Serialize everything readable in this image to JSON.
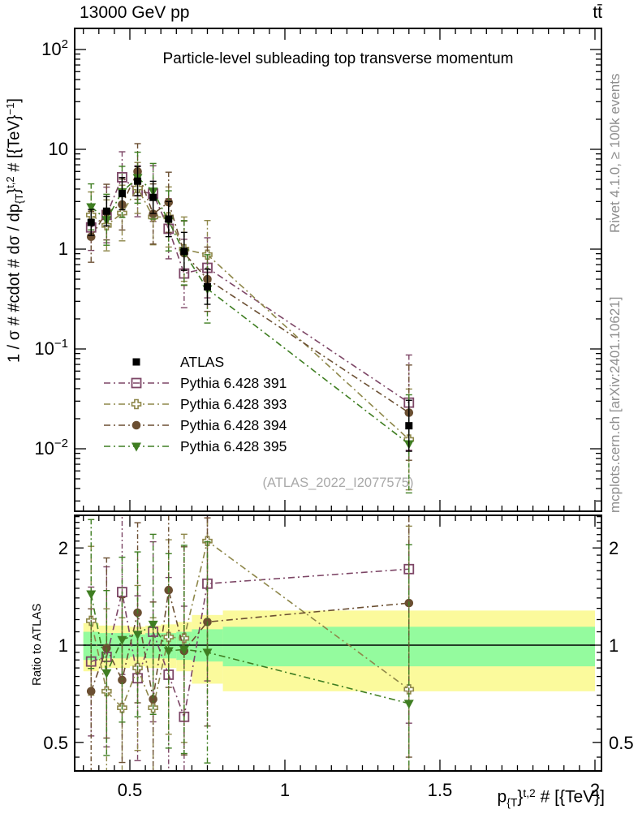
{
  "header": {
    "left_label": "13000 GeV pp",
    "right_label": "tt̄"
  },
  "side_notes": {
    "top_rotated": "Rivet 4.1.0, ≥ 100k events",
    "bottom_rotated": "mcplots.cern.ch [arXiv:2401.10621]"
  },
  "colors": {
    "frame": "#000000",
    "atlas": "#000000",
    "pythia391": "#7d4666",
    "pythia393": "#8e874a",
    "pythia394": "#6b4f32",
    "pythia395": "#3f7e22",
    "band_yellow": "#fbfa9c",
    "band_green": "#94fb9e",
    "note_gray": "#8e8e8e",
    "watermark_gray": "#a9a9a9"
  },
  "legend": {
    "items": [
      {
        "label": "ATLAS",
        "series": "ATLAS"
      },
      {
        "label": "Pythia 6.428 391",
        "series": "Pythia 6.428 391"
      },
      {
        "label": "Pythia 6.428 393",
        "series": "Pythia 6.428 393"
      },
      {
        "label": "Pythia 6.428 394",
        "series": "Pythia 6.428 394"
      },
      {
        "label": "Pythia 6.428 395",
        "series": "Pythia 6.428 395"
      }
    ]
  },
  "chart_data": [
    {
      "type": "scatter",
      "panel": "main",
      "title": "Particle-level subleading top transverse momentum",
      "watermark": "(ATLAS_2022_I2077575)",
      "ylabel_segments": [
        {
          "t": "1 / σ # #cdot # dσ / dp"
        },
        {
          "t": "{T",
          "pos": "sub"
        },
        {
          "t": "}"
        },
        {
          "t": "t,2",
          "pos": "sup"
        },
        {
          "t": " # [{TeV}"
        },
        {
          "t": "−1",
          "pos": "sup"
        },
        {
          "t": "]"
        }
      ],
      "xlabel_segments": [
        {
          "t": "p"
        },
        {
          "t": "{T",
          "pos": "sub"
        },
        {
          "t": "}"
        },
        {
          "t": "t,2",
          "pos": "sup"
        },
        {
          "t": " # [{TeV}]"
        }
      ],
      "xlim": [
        0.322,
        2.021
      ],
      "ylim": [
        0.0024,
        163
      ],
      "x_ticks": [
        {
          "label": "0.5",
          "value": 0.5
        },
        {
          "label": "1",
          "value": 1
        },
        {
          "label": "1.5",
          "value": 1.5
        },
        {
          "label": "2",
          "value": 2
        }
      ],
      "y_ticks": [
        {
          "label": "10",
          "sup": "2",
          "value": 100
        },
        {
          "label": "10",
          "value": 10
        },
        {
          "label": "1",
          "value": 1
        },
        {
          "label": "10",
          "sup": "−1",
          "value": 0.1
        },
        {
          "label": "10",
          "sup": "−2",
          "value": 0.01
        }
      ],
      "x": [
        0.375,
        0.425,
        0.475,
        0.525,
        0.575,
        0.625,
        0.675,
        0.75,
        1.4
      ],
      "series": [
        {
          "name": "ATLAS",
          "marker": "filled-square",
          "color_key": "atlas",
          "line": "none",
          "values": [
            1.85,
            2.4,
            3.6,
            4.8,
            3.3,
            2.0,
            0.95,
            0.42,
            0.017
          ],
          "err_factor": [
            1.35,
            1.4,
            1.45,
            1.4,
            1.45,
            1.5,
            1.55,
            1.5,
            1.8
          ]
        },
        {
          "name": "Pythia 6.428 391",
          "marker": "open-square",
          "color_key": "pythia391",
          "line": "dashdot",
          "values": [
            1.65,
            2.2,
            5.25,
            3.8,
            3.6,
            1.6,
            0.57,
            0.65,
            0.029
          ],
          "err_factor": [
            1.7,
            1.9,
            1.8,
            1.8,
            1.9,
            2.0,
            2.2,
            2.0,
            3.0
          ]
        },
        {
          "name": "Pythia 6.428 393",
          "marker": "open-cross",
          "color_key": "pythia393",
          "line": "dashdot",
          "values": [
            2.2,
            1.73,
            2.3,
            4.1,
            2.1,
            2.1,
            1.0,
            0.88,
            0.0124
          ],
          "err_factor": [
            1.7,
            1.8,
            1.9,
            1.8,
            1.9,
            2.0,
            2.1,
            2.2,
            3.2
          ]
        },
        {
          "name": "Pythia 6.428 394",
          "marker": "filled-circle",
          "color_key": "pythia394",
          "line": "dashdot",
          "values": [
            1.33,
            2.35,
            2.8,
            6.0,
            2.25,
            2.95,
            0.91,
            0.5,
            0.023
          ],
          "err_factor": [
            1.8,
            1.9,
            1.8,
            1.9,
            2.0,
            2.0,
            2.1,
            2.1,
            3.0
          ]
        },
        {
          "name": "Pythia 6.428 395",
          "marker": "filled-triangle-down",
          "color_key": "pythia395",
          "line": "dashdot",
          "values": [
            2.65,
            1.97,
            3.75,
            5.2,
            3.8,
            1.92,
            0.92,
            0.4,
            0.0112
          ],
          "err_factor": [
            1.7,
            1.8,
            1.8,
            1.8,
            1.9,
            2.0,
            2.1,
            2.2,
            3.1
          ]
        }
      ]
    },
    {
      "type": "ratio",
      "panel": "ratio",
      "ylabel": "Ratio to ATLAS",
      "reference": 1,
      "ylim": [
        0.408,
        2.52
      ],
      "y_ticks": [
        {
          "label": "2",
          "value": 2
        },
        {
          "label": "1",
          "value": 1
        },
        {
          "label": "0.5",
          "value": 0.5
        }
      ],
      "bin_edges": [
        0.35,
        0.4,
        0.45,
        0.5,
        0.55,
        0.6,
        0.65,
        0.7,
        0.8,
        2.0
      ],
      "bands": {
        "yellow": {
          "color_key": "band_yellow",
          "ranges": [
            [
              0.83,
              1.17
            ],
            [
              0.85,
              1.15
            ],
            [
              0.85,
              1.15
            ],
            [
              0.86,
              1.14
            ],
            [
              0.85,
              1.15
            ],
            [
              0.85,
              1.16
            ],
            [
              0.83,
              1.18
            ],
            [
              0.76,
              1.24
            ],
            [
              0.72,
              1.28
            ]
          ]
        },
        "green": {
          "color_key": "band_green",
          "ranges": [
            [
              0.9,
              1.1
            ],
            [
              0.91,
              1.09
            ],
            [
              0.91,
              1.09
            ],
            [
              0.92,
              1.08
            ],
            [
              0.91,
              1.09
            ],
            [
              0.91,
              1.09
            ],
            [
              0.9,
              1.1
            ],
            [
              0.89,
              1.12
            ],
            [
              0.86,
              1.14
            ]
          ]
        }
      },
      "series": [
        {
          "name": "Pythia 6.428 391",
          "ratios": [
            0.89,
            0.92,
            1.46,
            0.79,
            1.1,
            0.81,
            0.6,
            1.55,
            1.72
          ]
        },
        {
          "name": "Pythia 6.428 393",
          "ratios": [
            1.19,
            0.72,
            0.64,
            0.85,
            0.64,
            1.06,
            1.05,
            2.1,
            0.73
          ]
        },
        {
          "name": "Pythia 6.428 394",
          "ratios": [
            0.72,
            0.98,
            0.78,
            1.26,
            0.68,
            1.48,
            0.96,
            1.18,
            1.35
          ]
        },
        {
          "name": "Pythia 6.428 395",
          "ratios": [
            1.44,
            0.82,
            1.04,
            1.08,
            1.16,
            0.96,
            0.97,
            0.95,
            0.66
          ]
        }
      ]
    }
  ]
}
